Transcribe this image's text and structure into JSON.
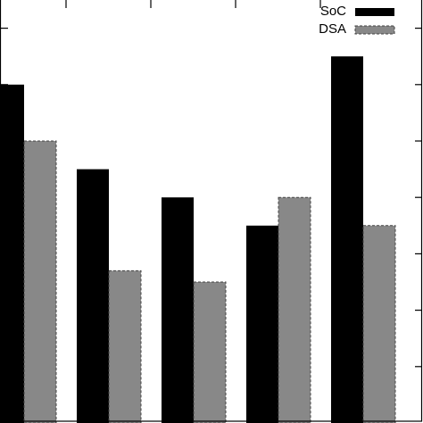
{
  "chart_data": {
    "type": "bar",
    "categories": [
      "",
      "",
      "",
      "",
      ""
    ],
    "series": [
      {
        "name": "SoC",
        "values": [
          6.0,
          4.5,
          4.0,
          3.5,
          6.5
        ]
      },
      {
        "name": "DSA",
        "values": [
          5.0,
          2.7,
          2.5,
          4.0,
          3.5
        ]
      }
    ],
    "ylim": [
      0,
      7.5
    ],
    "ytick_step": 1,
    "title": "",
    "xlabel": "",
    "ylabel": "",
    "legend_position": "top-right",
    "colors": {
      "SoC": "#000000",
      "DSA": "#888888",
      "DSA_border": "#444444",
      "axis": "#000000"
    }
  }
}
